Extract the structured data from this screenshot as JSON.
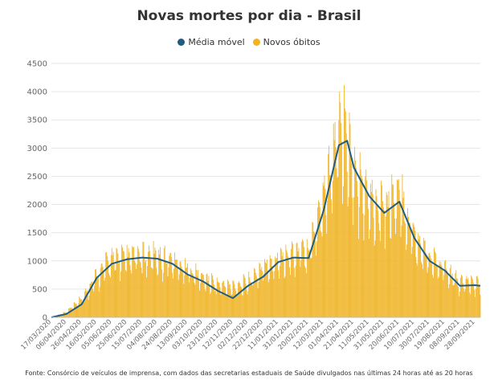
{
  "chart_data": {
    "type": "bar",
    "title": "Novas mortes por dia - Brasil",
    "legend_position": "top-center",
    "grid": true,
    "ylim": [
      0,
      4500
    ],
    "y_ticks": [
      "0",
      "500",
      "1000",
      "1500",
      "2000",
      "2500",
      "3000",
      "3500",
      "4000",
      "4500"
    ],
    "x_ticks": [
      "17/03/2020",
      "06/04/2020",
      "26/04/2020",
      "16/05/2020",
      "05/06/2020",
      "25/06/2020",
      "15/07/2020",
      "04/08/2020",
      "24/08/2020",
      "13/09/2020",
      "03/10/2020",
      "23/10/2020",
      "12/11/2020",
      "02/12/2020",
      "22/12/2020",
      "11/01/2021",
      "31/01/2021",
      "20/02/2021",
      "12/03/2021",
      "01/04/2021",
      "21/04/2021",
      "11/05/2021",
      "31/05/2021",
      "20/06/2021",
      "10/07/2021",
      "30/07/2021",
      "19/08/2021",
      "08/09/2021",
      "28/09/2021"
    ],
    "x_start": "17/03/2020",
    "x_end": "05/10/2021",
    "series": [
      {
        "name": "Média móvel",
        "color": "#1f5c80",
        "mark": "line",
        "points": [
          [
            "17/03/2020",
            0
          ],
          [
            "06/04/2020",
            60
          ],
          [
            "26/04/2020",
            230
          ],
          [
            "16/05/2020",
            700
          ],
          [
            "05/06/2020",
            950
          ],
          [
            "25/06/2020",
            1030
          ],
          [
            "15/07/2020",
            1060
          ],
          [
            "04/08/2020",
            1040
          ],
          [
            "24/08/2020",
            950
          ],
          [
            "13/09/2020",
            760
          ],
          [
            "03/10/2020",
            640
          ],
          [
            "23/10/2020",
            470
          ],
          [
            "12/11/2020",
            340
          ],
          [
            "02/12/2020",
            560
          ],
          [
            "22/12/2020",
            720
          ],
          [
            "11/01/2021",
            980
          ],
          [
            "31/01/2021",
            1060
          ],
          [
            "20/02/2021",
            1050
          ],
          [
            "12/03/2021",
            1900
          ],
          [
            "01/04/2021",
            3050
          ],
          [
            "12/04/2021",
            3130
          ],
          [
            "21/04/2021",
            2650
          ],
          [
            "11/05/2021",
            2150
          ],
          [
            "31/05/2021",
            1850
          ],
          [
            "20/06/2021",
            2050
          ],
          [
            "10/07/2021",
            1400
          ],
          [
            "30/07/2021",
            1000
          ],
          [
            "19/08/2021",
            830
          ],
          [
            "08/09/2021",
            560
          ],
          [
            "28/09/2021",
            570
          ],
          [
            "05/10/2021",
            560
          ]
        ]
      },
      {
        "name": "Novos óbitos",
        "color": "#f0b323",
        "mark": "bar",
        "daily_envelope": [
          [
            "17/03/2020",
            0
          ],
          [
            "06/04/2020",
            120
          ],
          [
            "26/04/2020",
            420
          ],
          [
            "16/05/2020",
            950
          ],
          [
            "05/06/2020",
            1350
          ],
          [
            "25/06/2020",
            1350
          ],
          [
            "15/07/2020",
            1400
          ],
          [
            "04/08/2020",
            1400
          ],
          [
            "24/08/2020",
            1300
          ],
          [
            "13/09/2020",
            1100
          ],
          [
            "03/10/2020",
            900
          ],
          [
            "23/10/2020",
            750
          ],
          [
            "12/11/2020",
            700
          ],
          [
            "02/12/2020",
            800
          ],
          [
            "22/12/2020",
            1150
          ],
          [
            "11/01/2021",
            1350
          ],
          [
            "31/01/2021",
            1450
          ],
          [
            "20/02/2021",
            1550
          ],
          [
            "12/03/2021",
            2750
          ],
          [
            "01/04/2021",
            4200
          ],
          [
            "12/04/2021",
            4100
          ],
          [
            "21/04/2021",
            3200
          ],
          [
            "11/05/2021",
            2700
          ],
          [
            "31/05/2021",
            2600
          ],
          [
            "20/06/2021",
            2750
          ],
          [
            "10/07/2021",
            1850
          ],
          [
            "30/07/2021",
            1350
          ],
          [
            "19/08/2021",
            1100
          ],
          [
            "08/09/2021",
            800
          ],
          [
            "28/09/2021",
            800
          ],
          [
            "05/10/2021",
            750
          ]
        ]
      }
    ]
  },
  "source_note": "Fonte: Consórcio de veículos de imprensa, com dados das secretarias estaduais de Saúde divulgados nas últimas 24 horas até as 20 horas"
}
